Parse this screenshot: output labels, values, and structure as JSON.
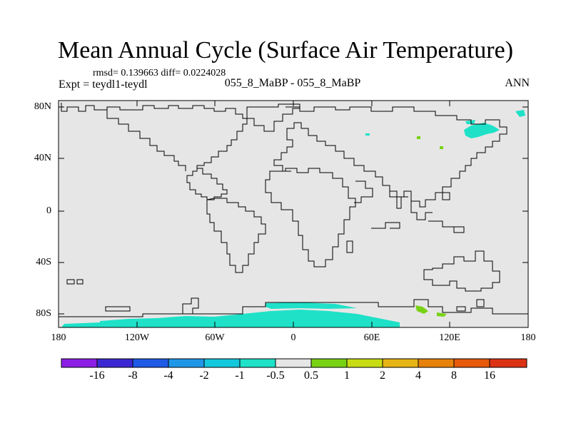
{
  "title": "Mean Annual Cycle (Surface Air Temperature)",
  "stats": "rmsd= 0.139663 diff= 0.0224028",
  "left_label": "Expt = teydl1-teydl",
  "center_label": "055_8_MaBP - 055_8_MaBP",
  "season_label": "ANN",
  "axes": {
    "lat_labels": [
      "80N",
      "40N",
      "0",
      "40S",
      "80S"
    ],
    "lon_labels": [
      "180",
      "120W",
      "60W",
      "0",
      "60E",
      "120E",
      "180"
    ]
  },
  "colorbar": {
    "labels": [
      "-16",
      "-8",
      "-4",
      "-2",
      "-1",
      "-0.5",
      "0.5",
      "1",
      "2",
      "4",
      "8",
      "16"
    ],
    "colors": [
      "#8c1ee6",
      "#3c28d2",
      "#1e5ae6",
      "#1e96e6",
      "#14c8dc",
      "#1ee1c8",
      "#e6e6e6",
      "#78d214",
      "#c8dc14",
      "#e6b414",
      "#e6820a",
      "#e65a0a",
      "#dc3214"
    ]
  },
  "chart_data": {
    "type": "heatmap",
    "title": "Mean Annual Cycle (Surface Air Temperature)",
    "subtitle": "055_8_MaBP - 055_8_MaBP",
    "variable": "Surface Air Temperature difference",
    "x_range": [
      -180,
      180
    ],
    "y_range": [
      -90,
      90
    ],
    "levels": [
      -16,
      -8,
      -4,
      -2,
      -1,
      -0.5,
      0.5,
      1,
      2,
      4,
      8,
      16
    ],
    "background_class": "-0.5 to 0.5",
    "regions": [
      {
        "name": "northeast-asia-negative",
        "class": "-1 to -0.5",
        "lon": [
          138,
          160
        ],
        "lat": [
          52,
          70
        ]
      },
      {
        "name": "antarctic-coast-negative",
        "class": "-1 to -0.5",
        "lon": [
          -160,
          70
        ],
        "lat": [
          -90,
          -72
        ]
      },
      {
        "name": "east-antarctic-positive",
        "class": "0.5 to 1",
        "lon": [
          95,
          120
        ],
        "lat": [
          -85,
          -80
        ]
      }
    ]
  }
}
